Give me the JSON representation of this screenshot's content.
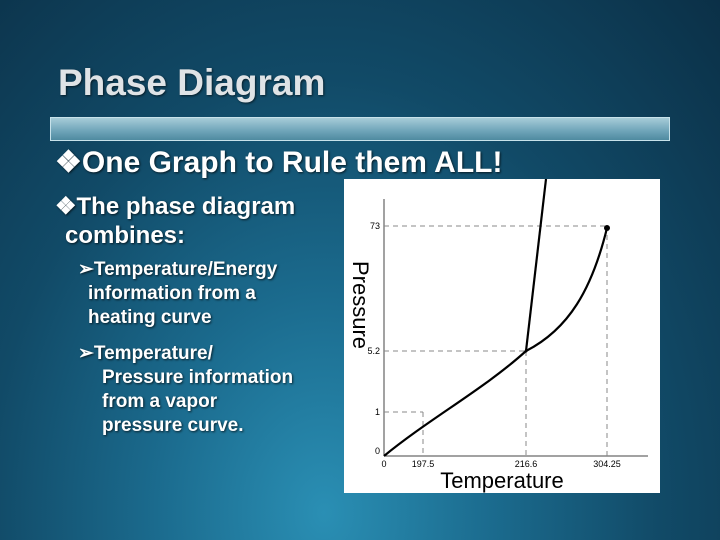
{
  "slide": {
    "title": "Phase Diagram",
    "bullets": [
      {
        "marker": "❖",
        "text": "One Graph to Rule them ALL!"
      },
      {
        "marker": "❖",
        "lines": [
          "The phase diagram",
          "combines:"
        ]
      }
    ],
    "sub_bullets": [
      {
        "marker": "➢",
        "lines": [
          "Temperature/Energy",
          "information from a",
          "heating curve"
        ]
      },
      {
        "marker": "➢",
        "lines": [
          "Temperature/",
          "Pressure information",
          "from a vapor",
          "pressure curve."
        ]
      }
    ]
  },
  "chart_data": {
    "type": "line",
    "xlabel": "Temperature",
    "ylabel": "Pressure",
    "x_ticks": [
      "0",
      "197.5",
      "216.6",
      "304.25"
    ],
    "y_ticks": [
      "0",
      "1",
      "5.2",
      "73"
    ],
    "triple_point": {
      "x": "216.6",
      "y": "5.2"
    },
    "critical_point": {
      "x": "304.25",
      "y": "73"
    },
    "curves": [
      "sublimation",
      "melting",
      "vaporization"
    ],
    "grid": false,
    "colors": {
      "curve": "#000000",
      "guide": "#888888",
      "axis": "#444444"
    }
  }
}
